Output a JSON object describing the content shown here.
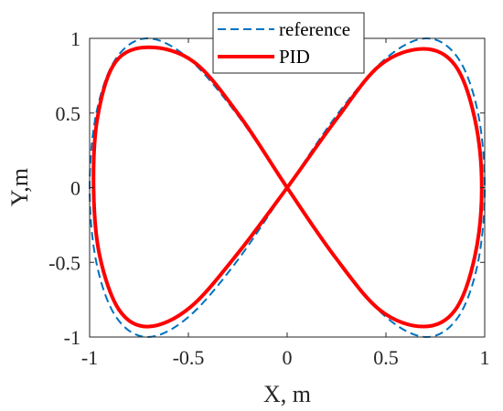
{
  "chart_data": {
    "type": "line",
    "title": "",
    "xlabel": "X, m",
    "ylabel": "Y,m",
    "xlim": [
      -1,
      1
    ],
    "ylim": [
      -1,
      1
    ],
    "xticks": [
      -1,
      -0.5,
      0,
      0.5,
      1
    ],
    "yticks": [
      -1,
      -0.5,
      0,
      0.5,
      1
    ],
    "xtick_labels": [
      "-1",
      "-0.5",
      "0",
      "0.5",
      "1"
    ],
    "ytick_labels": [
      "-1",
      "-0.5",
      "0",
      "0.5",
      "1"
    ],
    "grid": false,
    "legend_position": "top-center",
    "series": [
      {
        "name": "reference",
        "style": "dashed",
        "color": "#0072BD",
        "shape": "lemniscate of Gerono: x = sin(t), y = sin(2t)",
        "x": [
          0,
          0.259,
          0.5,
          0.707,
          0.866,
          0.966,
          1,
          0.966,
          0.866,
          0.707,
          0.5,
          0.259,
          0,
          -0.259,
          -0.5,
          -0.707,
          -0.866,
          -0.966,
          -1,
          -0.966,
          -0.866,
          -0.707,
          -0.5,
          -0.259,
          0
        ],
        "y": [
          0,
          0.5,
          0.866,
          1,
          0.866,
          0.5,
          0,
          -0.5,
          -0.866,
          -1,
          -0.866,
          -0.5,
          0,
          0.5,
          0.866,
          1,
          0.866,
          0.5,
          0,
          -0.5,
          -0.866,
          -1,
          -0.866,
          -0.5,
          0
        ]
      },
      {
        "name": "PID",
        "style": "solid",
        "color": "#FF0000",
        "x": [
          0,
          0.25,
          0.47,
          0.69,
          0.85,
          0.95,
          0.985,
          0.95,
          0.85,
          0.69,
          0.47,
          0.24,
          0,
          -0.24,
          -0.47,
          -0.7,
          -0.87,
          -0.96,
          -0.98,
          -0.95,
          -0.85,
          -0.7,
          -0.49,
          -0.25,
          0
        ],
        "y": [
          0,
          0.46,
          0.82,
          0.93,
          0.82,
          0.46,
          0,
          -0.46,
          -0.82,
          -0.93,
          -0.82,
          -0.46,
          0,
          0.48,
          0.84,
          0.94,
          0.84,
          0.47,
          0,
          -0.45,
          -0.82,
          -0.93,
          -0.8,
          -0.44,
          0
        ]
      }
    ]
  }
}
